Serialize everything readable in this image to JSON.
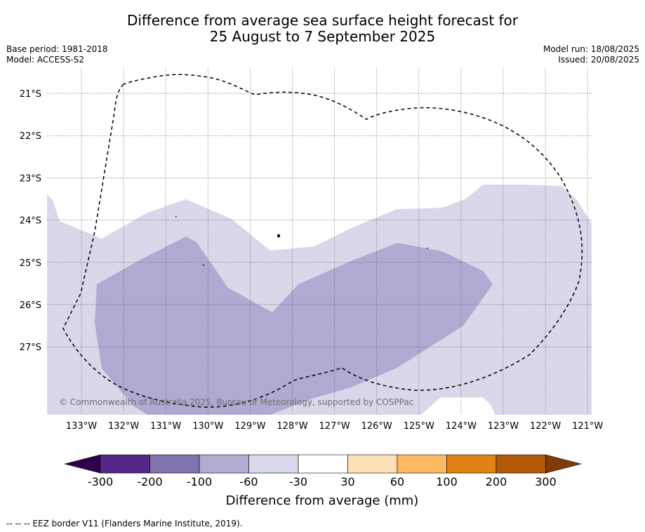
{
  "title_line1": "Difference from average sea surface height forecast for",
  "title_line2": "25 August to 7 September 2025",
  "meta_left": {
    "base_period": "Base period: 1981-2018",
    "model": "Model: ACCESS-S2"
  },
  "meta_right": {
    "model_run": "Model run: 18/08/2025",
    "issued": "Issued: 20/08/2025"
  },
  "map": {
    "lon_labels": [
      "133°W",
      "132°W",
      "131°W",
      "130°W",
      "129°W",
      "128°W",
      "127°W",
      "126°W",
      "125°W",
      "124°W",
      "123°W",
      "122°W",
      "121°W"
    ],
    "lat_labels": [
      "21°S",
      "22°S",
      "23°S",
      "24°S",
      "25°S",
      "26°S",
      "27°S"
    ],
    "copyright": "© Commonwealth of Australia 2025, Bureau of Meteorology, supported by COSPPac",
    "eez_border_style": "dashed black",
    "shading_classes": [
      {
        "range": "-60 to -30",
        "color": "#d8d8ea"
      },
      {
        "range": "-100 to -60",
        "color": "#b0aad2"
      }
    ]
  },
  "colorbar": {
    "ticks": [
      "-300",
      "-200",
      "-100",
      "-60",
      "-30",
      "30",
      "60",
      "100",
      "200",
      "300"
    ],
    "segments": [
      "#542788",
      "#8073ac",
      "#b2abd2",
      "#d8daeb",
      "#ffffff",
      "#fee0b6",
      "#fdb863",
      "#e08214",
      "#b35806"
    ],
    "under_color": "#2d004b",
    "over_color": "#7f3b08",
    "label": "Difference from average (mm)"
  },
  "footnote": "--  --  -- EEZ border V11 (Flanders Marine Institute, 2019)."
}
